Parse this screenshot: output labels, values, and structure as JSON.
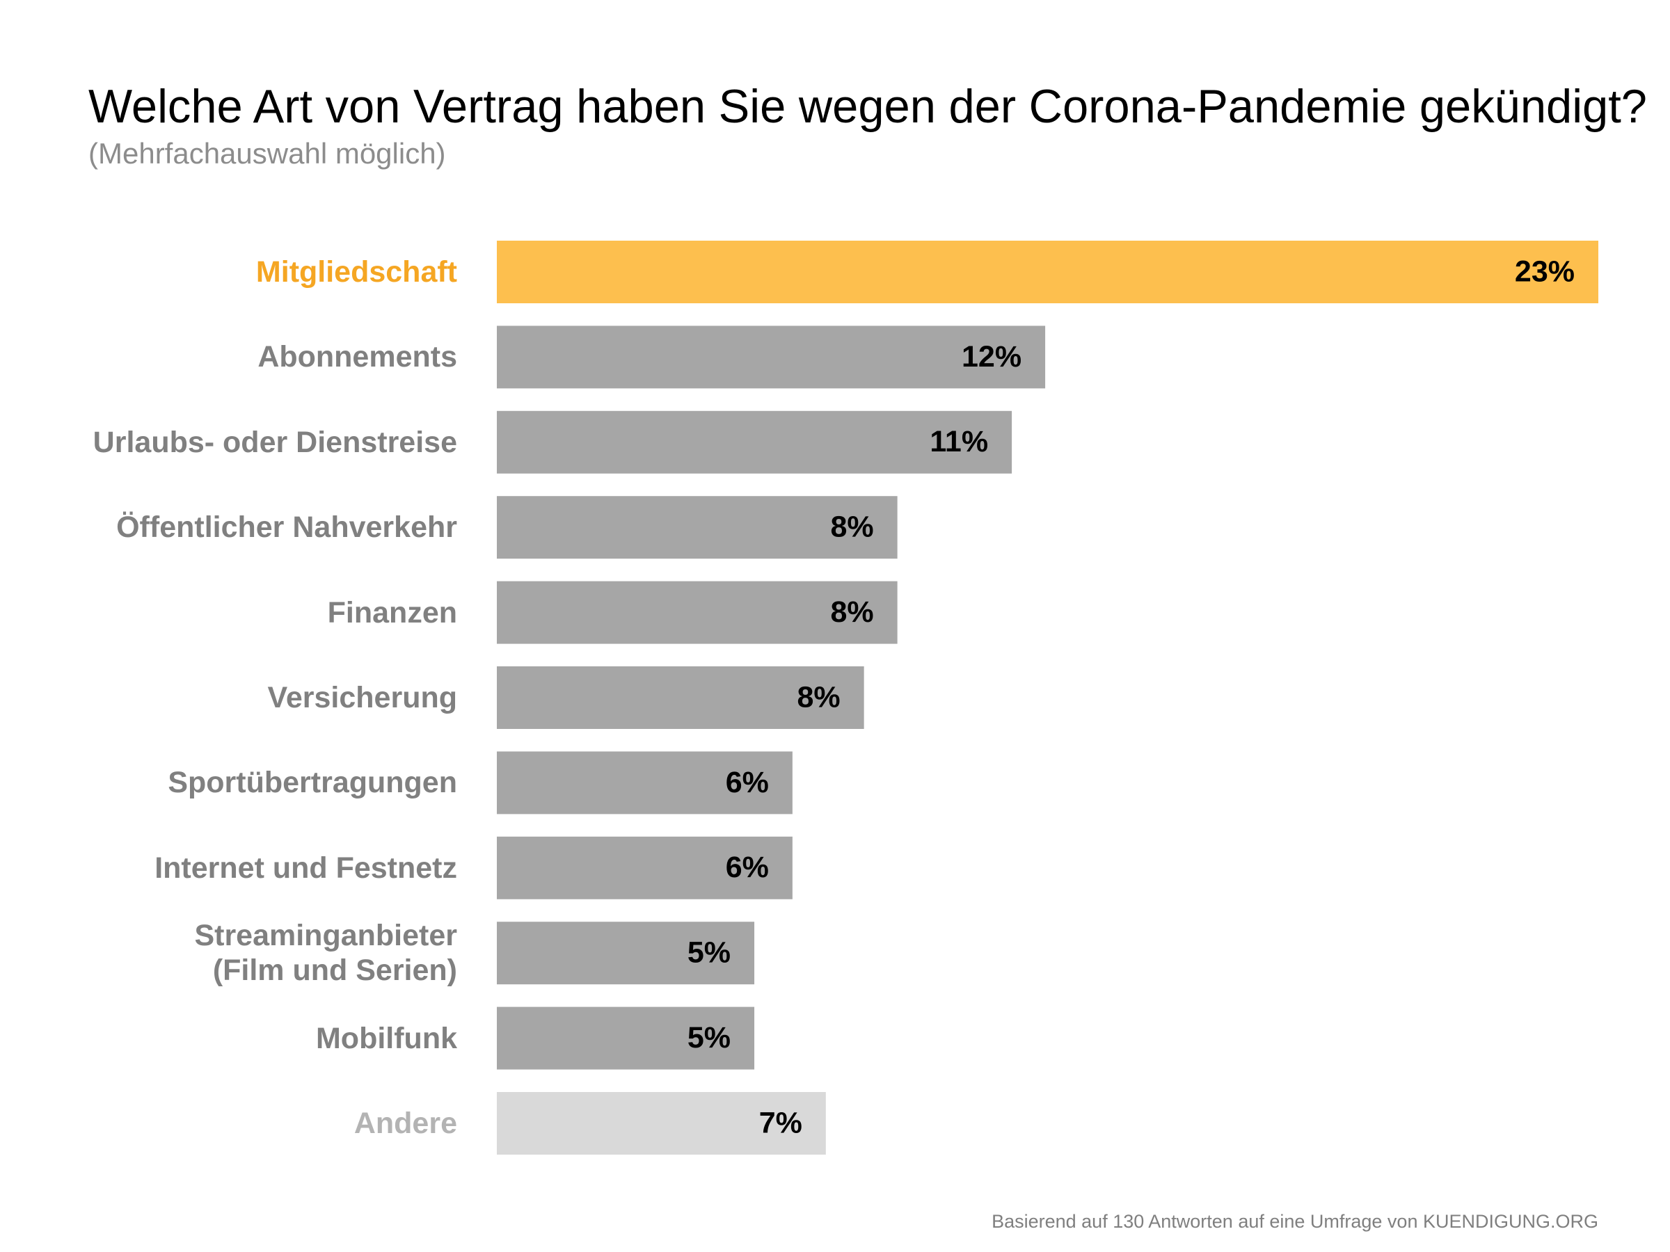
{
  "chart_data": {
    "type": "bar",
    "orientation": "horizontal",
    "title": "Welche Art von Vertrag haben Sie wegen der Corona-Pandemie gekündigt?",
    "subtitle": "(Mehrfachauswahl möglich)",
    "categories": [
      "Mitgliedschaft",
      "Abonnements",
      "Urlaubs- oder Dienstreise",
      "Öffentlicher Nahverkehr",
      "Finanzen",
      "Versicherung",
      "Sportübertragungen",
      "Internet und Festnetz",
      "Streaminganbieter\n(Film und Serien)",
      "Mobilfunk",
      "Andere"
    ],
    "values": [
      23.1,
      11.5,
      10.8,
      8.4,
      8.4,
      7.7,
      6.2,
      6.2,
      5.4,
      5.4,
      6.9
    ],
    "value_labels": [
      "23%",
      "12%",
      "11%",
      "8%",
      "8%",
      "8%",
      "6%",
      "6%",
      "5%",
      "5%",
      "7%"
    ],
    "colors": [
      "#fdbf4e",
      "#a6a6a6",
      "#a6a6a6",
      "#a6a6a6",
      "#a6a6a6",
      "#a6a6a6",
      "#a6a6a6",
      "#a6a6a6",
      "#a6a6a6",
      "#a6a6a6",
      "#d9d9d9"
    ],
    "label_colors": [
      "#f5a623",
      "#808080",
      "#808080",
      "#808080",
      "#808080",
      "#808080",
      "#808080",
      "#808080",
      "#808080",
      "#808080",
      "#b3b3b3"
    ],
    "footnote": "Basierend auf 130 Antworten auf eine Umfrage von KUENDIGUNG.ORG"
  }
}
